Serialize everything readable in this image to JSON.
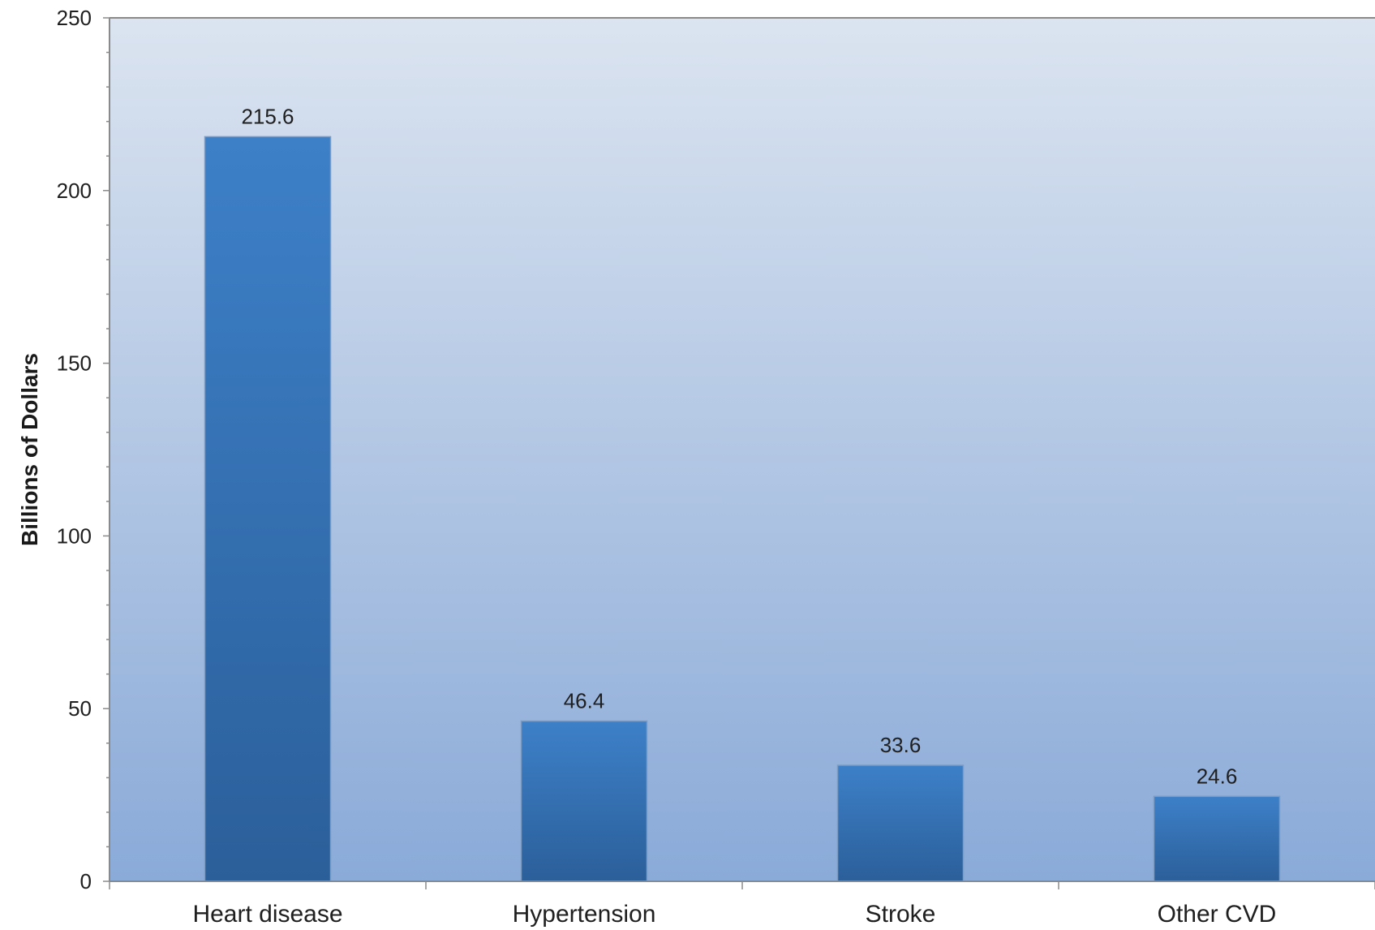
{
  "chart_data": {
    "type": "bar",
    "title": "",
    "xlabel": "",
    "ylabel": "Billions of Dollars",
    "categories": [
      "Heart disease",
      "Hypertension",
      "Stroke",
      "Other CVD"
    ],
    "values": [
      215.6,
      46.4,
      33.6,
      24.6
    ],
    "data_labels": [
      "215.6",
      "46.4",
      "33.6",
      "24.6"
    ],
    "ylim": [
      0,
      250
    ],
    "yticks": [
      0,
      50,
      100,
      150,
      200,
      250
    ],
    "ytick_labels": [
      "0",
      "50",
      "100",
      "150",
      "200",
      "250"
    ],
    "grid": false,
    "legend": "none",
    "colors": {
      "bar_top": "#3d80c8",
      "bar_bottom": "#2b5f9a",
      "bg_top": "#dbe4f0",
      "bg_bottom": "#8aaad8",
      "axis": "#8a8a8a"
    }
  }
}
